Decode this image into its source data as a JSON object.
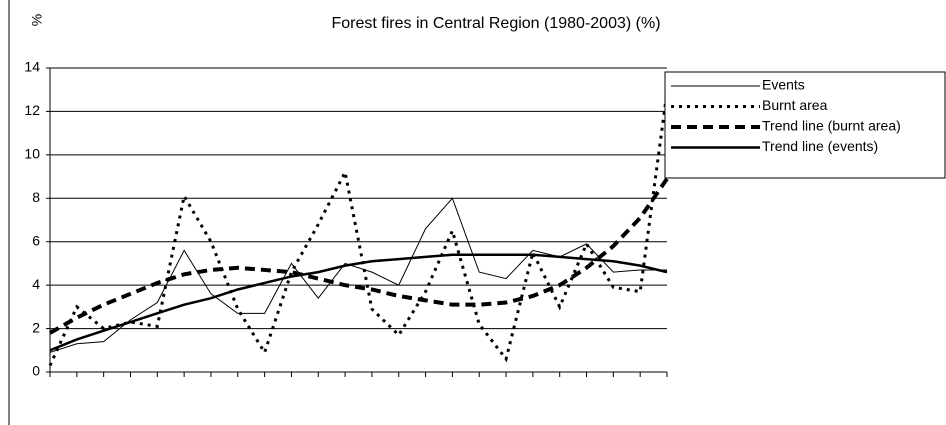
{
  "chart_data": {
    "type": "line",
    "title": "Forest fires in Central Region (1980-2003) (%)",
    "y_label": "%",
    "categories": [
      null,
      null,
      null,
      null,
      null,
      null,
      null,
      null,
      null,
      null,
      null,
      null,
      null,
      null,
      null,
      null,
      null,
      null,
      null,
      null,
      null,
      null,
      null,
      null
    ],
    "series": [
      {
        "name": "Events",
        "color": "#000000",
        "line_style": "solid-thin",
        "values": [
          0.9,
          1.3,
          1.4,
          2.4,
          3.2,
          5.6,
          3.6,
          2.7,
          2.7,
          5.0,
          3.4,
          5.0,
          4.6,
          4.0,
          6.6,
          8.0,
          4.6,
          4.3,
          5.6,
          5.3,
          5.9,
          4.6,
          4.7,
          4.7
        ]
      },
      {
        "name": "Burnt area",
        "color": "#000000",
        "line_style": "dotted",
        "values": [
          0.3,
          3.0,
          2.0,
          2.3,
          2.1,
          8.1,
          6.0,
          2.9,
          0.9,
          4.6,
          6.8,
          9.2,
          2.9,
          1.7,
          3.7,
          6.5,
          2.2,
          0.6,
          5.5,
          3.0,
          5.9,
          3.9,
          3.7,
          12.9
        ]
      },
      {
        "name": "Trend line (burnt area)",
        "color": "#000000",
        "line_style": "dashed",
        "values": [
          1.8,
          2.5,
          3.1,
          3.6,
          4.1,
          4.5,
          4.7,
          4.8,
          4.7,
          4.6,
          4.3,
          4.0,
          3.8,
          3.5,
          3.3,
          3.1,
          3.1,
          3.2,
          3.5,
          4.0,
          4.8,
          5.8,
          7.1,
          8.9
        ]
      },
      {
        "name": "Trend line (events)",
        "color": "#000000",
        "line_style": "solid-thick",
        "values": [
          1.0,
          1.5,
          1.9,
          2.3,
          2.7,
          3.1,
          3.4,
          3.8,
          4.1,
          4.4,
          4.6,
          4.9,
          5.1,
          5.2,
          5.3,
          5.4,
          5.4,
          5.4,
          5.4,
          5.3,
          5.2,
          5.1,
          4.9,
          4.6
        ]
      }
    ],
    "ylim": [
      0,
      14
    ],
    "yticks": [
      0,
      2,
      4,
      6,
      8,
      10,
      12,
      14
    ],
    "grid": true,
    "legend": "right"
  }
}
